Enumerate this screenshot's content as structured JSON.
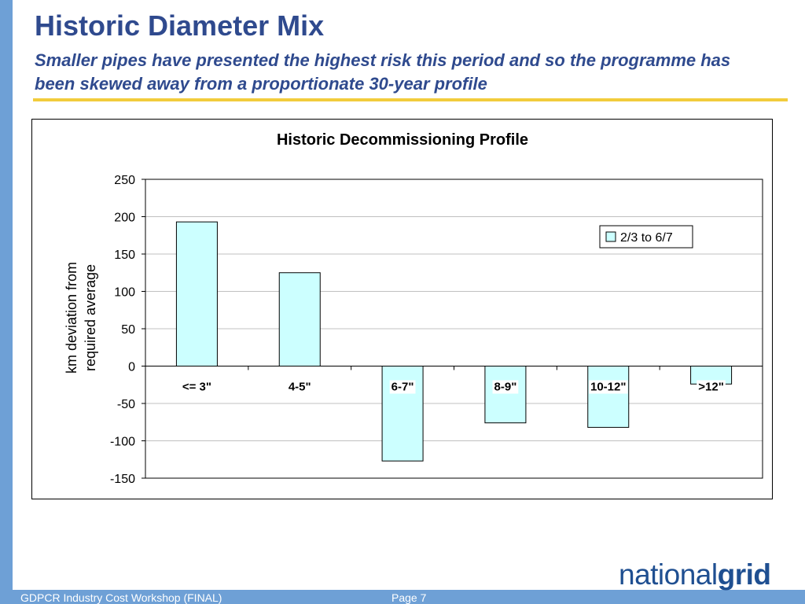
{
  "slide": {
    "title": "Historic Diameter Mix",
    "subtitle": "Smaller pipes have presented the highest risk this period and so the programme has been skewed away from a proportionate 30-year profile",
    "footer_left": "GDPCR Industry Cost Workshop (FINAL)",
    "footer_page": "Page 7",
    "logo_light": "national",
    "logo_bold": "grid"
  },
  "colors": {
    "accent_bar": "#6ea0d6",
    "title_text": "#2f4a8e",
    "rule": "#f2cc3c",
    "bar_fill": "#ccffff"
  },
  "chart_data": {
    "type": "bar",
    "title": "Historic Decommissioning Profile",
    "ylabel": "km deviation from required average",
    "xlabel": "",
    "categories": [
      "<= 3\"",
      "4-5\"",
      "6-7\"",
      "8-9\"",
      "10-12\"",
      ">12\""
    ],
    "series": [
      {
        "name": "2/3 to 6/7",
        "values": [
          193,
          125,
          -127,
          -76,
          -82,
          -24
        ]
      }
    ],
    "ylim": [
      -150,
      250
    ],
    "yticks": [
      -150,
      -100,
      -50,
      0,
      50,
      100,
      150,
      200,
      250
    ],
    "grid": true,
    "legend": "top-right"
  }
}
